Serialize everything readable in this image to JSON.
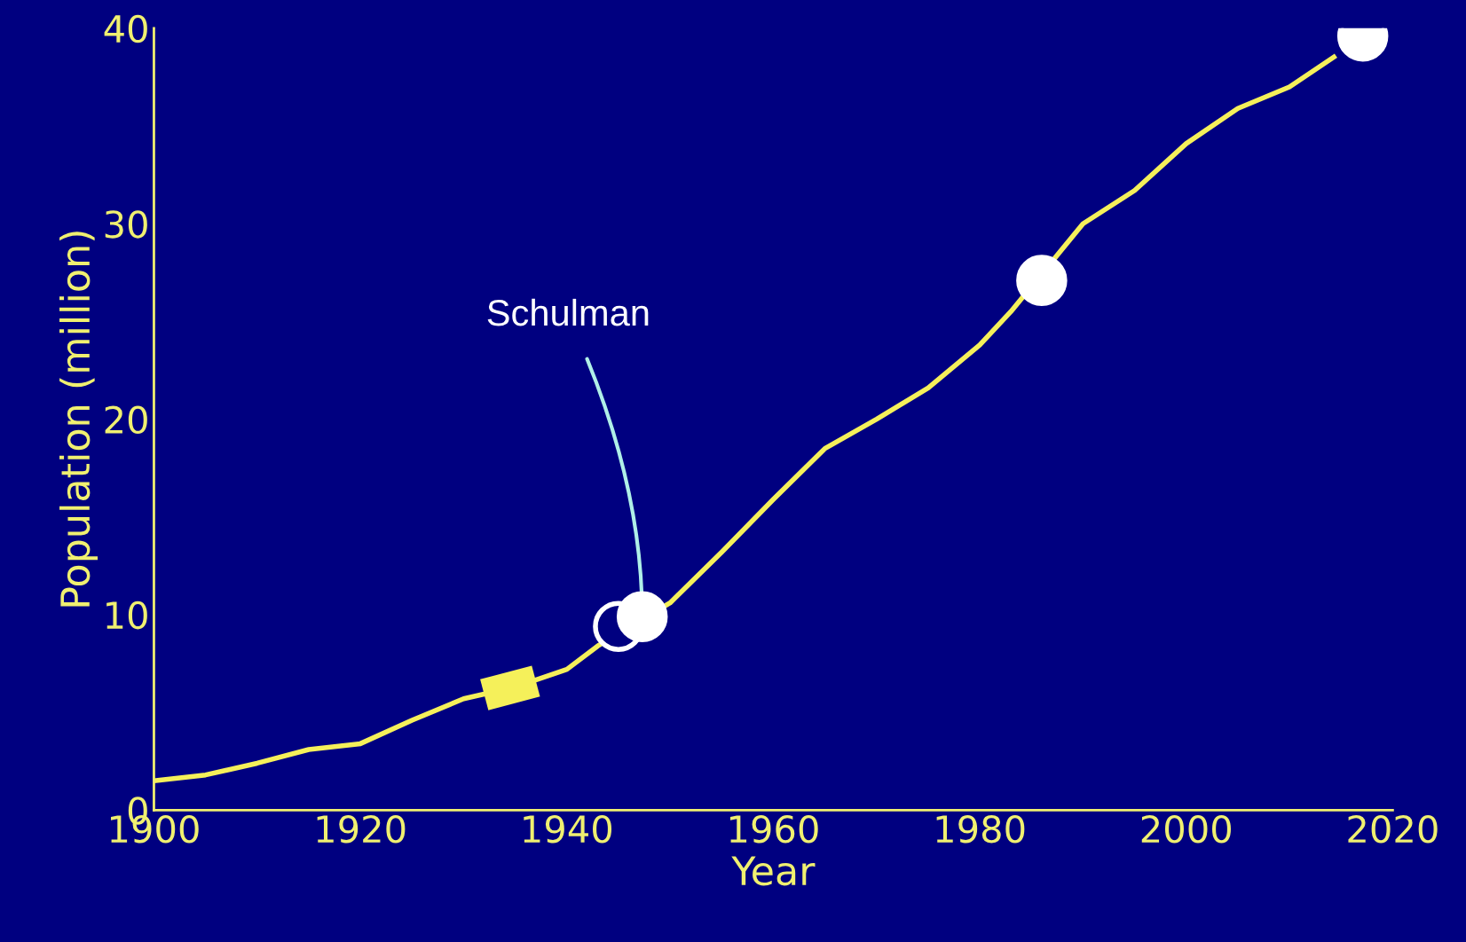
{
  "chart_data": {
    "type": "line",
    "xlabel": "Year",
    "ylabel": "Population (million)",
    "xlim": [
      1900,
      2020
    ],
    "ylim": [
      0,
      40
    ],
    "xticks": [
      1900,
      1920,
      1940,
      1960,
      1980,
      2000,
      2020
    ],
    "yticks": [
      0,
      10,
      20,
      30,
      40
    ],
    "grid": false,
    "legend": false,
    "line_style": "solid",
    "series": [
      {
        "color": "#f5f05a",
        "x": [
          1900,
          1905,
          1910,
          1915,
          1920,
          1925,
          1930,
          1935,
          1940,
          1943,
          1950,
          1955,
          1960,
          1965,
          1970,
          1975,
          1980,
          1983,
          1990,
          1995,
          2000,
          2005,
          2010,
          2014.5
        ],
        "values": [
          1.5,
          1.8,
          2.4,
          3.1,
          3.4,
          4.6,
          5.7,
          6.3,
          7.2,
          8.4,
          10.6,
          13.2,
          15.9,
          18.5,
          20.0,
          21.6,
          23.8,
          25.5,
          30.0,
          31.7,
          34.1,
          35.9,
          37.0,
          38.6
        ]
      },
      {
        "color": "#f5f05a",
        "x": [
          1932,
          1937
        ],
        "values": [
          5.9,
          6.6
        ]
      },
      {
        "type": "scatter",
        "marker": "circle",
        "color": "#000080",
        "x": [
          1945
        ],
        "values": [
          9.4
        ]
      },
      {
        "type": "scatter",
        "marker": "circle",
        "color": "#ffffff",
        "x": [
          1947.3,
          1986,
          2017.1
        ],
        "values": [
          9.9,
          27.1,
          39.6
        ]
      }
    ],
    "annotations": [
      {
        "text": "Schulman",
        "x": 1947.3,
        "y": 9.9
      }
    ]
  }
}
